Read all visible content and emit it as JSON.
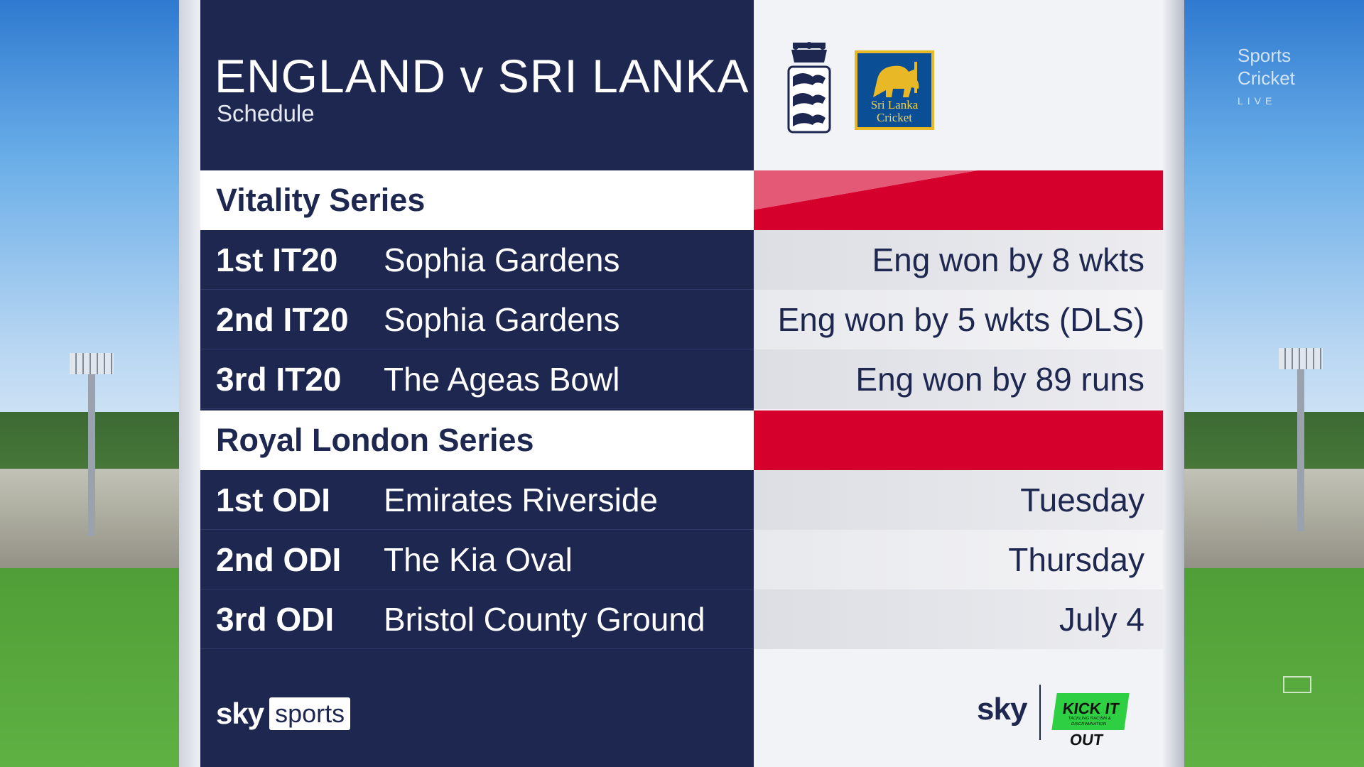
{
  "header": {
    "title": "ENGLAND v SRI LANKA",
    "subtitle": "Schedule"
  },
  "crests": {
    "england_icon": "three-lions-crest-icon",
    "sri_lanka_text": "Sri Lanka Cricket"
  },
  "colors": {
    "navy": "#1e2750",
    "red": "#d5002c",
    "light": "#f2f3f6",
    "kick_it_out_green": "#2ecf43"
  },
  "series": [
    {
      "name": "Vitality Series",
      "matches": [
        {
          "label": "1st IT20",
          "venue": "Sophia Gardens",
          "result": "Eng won by 8 wkts"
        },
        {
          "label": "2nd IT20",
          "venue": "Sophia Gardens",
          "result": "Eng won by 5 wkts (DLS)"
        },
        {
          "label": "3rd IT20",
          "venue": "The Ageas Bowl",
          "result": "Eng won by 89 runs"
        }
      ]
    },
    {
      "name": "Royal London Series",
      "matches": [
        {
          "label": "1st ODI",
          "venue": "Emirates Riverside",
          "result": "Tuesday"
        },
        {
          "label": "2nd ODI",
          "venue": "The Kia Oval",
          "result": "Thursday"
        },
        {
          "label": "3rd ODI",
          "venue": "Bristol County Ground",
          "result": "July 4"
        }
      ]
    }
  ],
  "footer": {
    "skysports_sky": "sky",
    "skysports_sports": "sports",
    "sky": "sky",
    "kick_it_out": "KICK IT OUT",
    "kick_it_out_tagline": "TACKLING RACISM & DISCRIMINATION"
  },
  "overlay": {
    "channel_line1": "Sports",
    "channel_line2": "Cricket",
    "channel_line3": "LIVE"
  }
}
